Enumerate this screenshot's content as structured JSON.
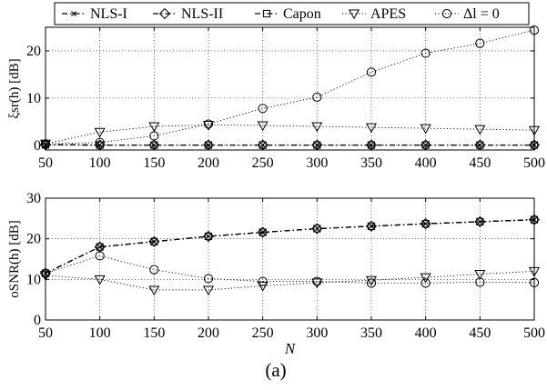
{
  "caption": "(a)",
  "legend": [
    {
      "label": "NLS-I",
      "marker": "x",
      "dash": "6,3,1.5,3"
    },
    {
      "label": "NLS-II",
      "marker": "diamond",
      "dash": "6,3,1.5,3"
    },
    {
      "label": "Capon",
      "marker": "square",
      "dash": "6,3,1.5,3"
    },
    {
      "label": "APES",
      "marker": "triangle-down",
      "dash": "1.2,2.4"
    },
    {
      "label": "Δl = 0",
      "marker": "circle",
      "dash": "1.2,2.4"
    }
  ],
  "chart_data": [
    {
      "type": "line",
      "ylabel": "ξsr(h) [dB]",
      "xlabel": "",
      "x": [
        50,
        100,
        150,
        200,
        250,
        300,
        350,
        400,
        450,
        500
      ],
      "xlim": [
        50,
        500
      ],
      "ylim": [
        -1,
        25
      ],
      "yticks": [
        0,
        10,
        20
      ],
      "grid": true,
      "series": [
        {
          "name": "NLS-I",
          "values": [
            0.1,
            0.05,
            0.05,
            0.05,
            0.05,
            0.05,
            0.05,
            0.05,
            0.05,
            0.05
          ]
        },
        {
          "name": "NLS-II",
          "values": [
            0.1,
            0.05,
            0.05,
            0.05,
            0.05,
            0.05,
            0.05,
            0.05,
            0.05,
            0.05
          ]
        },
        {
          "name": "Capon",
          "values": [
            0.1,
            0.05,
            0.05,
            0.05,
            0.05,
            0.05,
            0.05,
            0.05,
            0.05,
            0.05
          ]
        },
        {
          "name": "APES",
          "values": [
            0.3,
            2.8,
            4.0,
            4.3,
            4.2,
            4.0,
            3.8,
            3.6,
            3.4,
            3.2
          ]
        },
        {
          "name": "Δl = 0",
          "values": [
            0.3,
            0.6,
            2.0,
            4.5,
            7.8,
            10.2,
            15.5,
            19.5,
            21.6,
            24.4
          ]
        }
      ]
    },
    {
      "type": "line",
      "ylabel": "oSNR(h) [dB]",
      "xlabel": "N",
      "x": [
        50,
        100,
        150,
        200,
        250,
        300,
        350,
        400,
        450,
        500
      ],
      "xlim": [
        50,
        500
      ],
      "ylim": [
        0,
        30
      ],
      "yticks": [
        0,
        10,
        20,
        30
      ],
      "grid": true,
      "series": [
        {
          "name": "NLS-I",
          "values": [
            11.5,
            18.0,
            19.3,
            20.6,
            21.6,
            22.5,
            23.1,
            23.7,
            24.2,
            24.7
          ]
        },
        {
          "name": "NLS-II",
          "values": [
            11.5,
            18.0,
            19.3,
            20.6,
            21.6,
            22.5,
            23.1,
            23.7,
            24.2,
            24.7
          ]
        },
        {
          "name": "Capon",
          "values": [
            11.5,
            18.0,
            19.3,
            20.6,
            21.6,
            22.5,
            23.1,
            23.7,
            24.2,
            24.7
          ]
        },
        {
          "name": "APES",
          "values": [
            11.0,
            10.0,
            7.4,
            7.4,
            8.4,
            9.2,
            9.8,
            10.5,
            11.3,
            12.0
          ]
        },
        {
          "name": "Δl = 0",
          "values": [
            11.5,
            15.8,
            12.4,
            10.2,
            9.5,
            9.5,
            9.1,
            9.1,
            9.3,
            9.2
          ]
        }
      ]
    }
  ]
}
